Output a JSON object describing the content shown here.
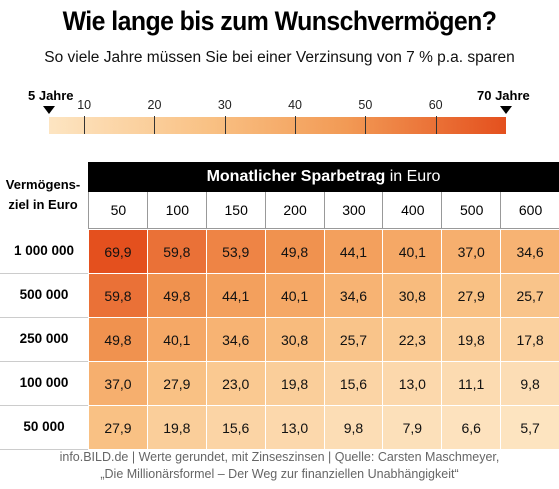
{
  "title": "Wie lange bis zum Wunschvermögen?",
  "subtitle": "So viele Jahre müssen Sie bei einer Verzinsung von 7 % p.a. sparen",
  "scale": {
    "min_label": "5 Jahre",
    "max_label": "70 Jahre",
    "min": 5,
    "max": 70,
    "ticks": [
      "10",
      "20",
      "30",
      "40",
      "50",
      "60"
    ],
    "tick_values": [
      10,
      20,
      30,
      40,
      50,
      60
    ],
    "color_low": "#fde5c2",
    "color_high": "#e4501e"
  },
  "chart_data": {
    "type": "heatmap",
    "title": "Wie lange bis zum Wunschvermögen?",
    "subtitle": "So viele Jahre müssen Sie bei einer Verzinsung von 7 % p.a. sparen",
    "column_header_bold": "Monatlicher Sparbetrag",
    "column_header_unit": "in Euro",
    "row_header": "Vermögens-ziel in Euro",
    "row_header_line1": "Vermögens-",
    "row_header_line2": "ziel in Euro",
    "columns": [
      "50",
      "100",
      "150",
      "200",
      "300",
      "400",
      "500",
      "600"
    ],
    "rows": [
      "1 000 000",
      "500 000",
      "250 000",
      "100 000",
      "50 000"
    ],
    "values": [
      [
        "69,9",
        "59,8",
        "53,9",
        "49,8",
        "44,1",
        "40,1",
        "37,0",
        "34,6"
      ],
      [
        "59,8",
        "49,8",
        "44,1",
        "40,1",
        "34,6",
        "30,8",
        "27,9",
        "25,7"
      ],
      [
        "49,8",
        "40,1",
        "34,6",
        "30,8",
        "25,7",
        "22,3",
        "19,8",
        "17,8"
      ],
      [
        "37,0",
        "27,9",
        "23,0",
        "19,8",
        "15,6",
        "13,0",
        "11,1",
        "9,8"
      ],
      [
        "27,9",
        "19,8",
        "15,6",
        "13,0",
        "9,8",
        "7,9",
        "6,6",
        "5,7"
      ]
    ],
    "numeric_values": [
      [
        69.9,
        59.8,
        53.9,
        49.8,
        44.1,
        40.1,
        37.0,
        34.6
      ],
      [
        59.8,
        49.8,
        44.1,
        40.1,
        34.6,
        30.8,
        27.9,
        25.7
      ],
      [
        49.8,
        40.1,
        34.6,
        30.8,
        25.7,
        22.3,
        19.8,
        17.8
      ],
      [
        37.0,
        27.9,
        23.0,
        19.8,
        15.6,
        13.0,
        11.1,
        9.8
      ],
      [
        27.9,
        19.8,
        15.6,
        13.0,
        9.8,
        7.9,
        6.6,
        5.7
      ]
    ],
    "color_scale_range": [
      5,
      70
    ]
  },
  "footer": {
    "line1": "info.BILD.de | Werte gerundet, mit Zinseszinsen | Quelle: Carsten Maschmeyer,",
    "line2": "„Die Millionärsformel – Der Weg zur finanziellen Unabhängigkeit“"
  }
}
